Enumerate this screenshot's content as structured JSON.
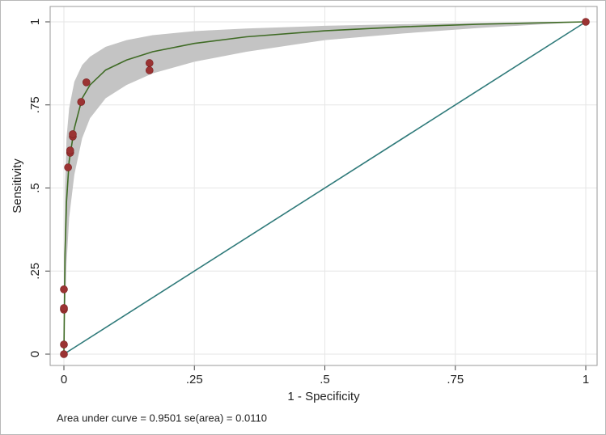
{
  "chart_data": {
    "type": "scatter",
    "xlabel": "1 - Specificity",
    "ylabel": "Sensitivity",
    "note": "Area under curve = 0.9501  se(area) = 0.0110",
    "xlim": [
      0,
      1
    ],
    "ylim": [
      0,
      1
    ],
    "xticks": [
      0,
      {
        "value": 0.25,
        "label": ".25"
      },
      {
        "value": 0.5,
        "label": ".5"
      },
      {
        "value": 0.75,
        "label": ".75"
      },
      1
    ],
    "yticks": [
      0,
      {
        "value": 0.25,
        "label": ".25"
      },
      {
        "value": 0.5,
        "label": ".5"
      },
      {
        "value": 0.75,
        "label": ".75"
      },
      1
    ],
    "grid": true,
    "series": [
      {
        "type": "area",
        "color": "#c4c4c4",
        "x": [
          0,
          0.002,
          0.005,
          0.01,
          0.02,
          0.035,
          0.05,
          0.08,
          0.12,
          0.17,
          0.25,
          0.35,
          0.5,
          0.65,
          0.8,
          1
        ],
        "upper": [
          0,
          0.5,
          0.65,
          0.74,
          0.82,
          0.87,
          0.895,
          0.925,
          0.945,
          0.96,
          0.972,
          0.98,
          0.988,
          0.993,
          0.997,
          1
        ],
        "lower": [
          0,
          0.12,
          0.27,
          0.41,
          0.54,
          0.65,
          0.71,
          0.77,
          0.81,
          0.845,
          0.88,
          0.91,
          0.945,
          0.965,
          0.982,
          1
        ]
      },
      {
        "type": "line",
        "color": "#2f7a7a",
        "x": [
          0,
          1
        ],
        "values": [
          0,
          1
        ]
      },
      {
        "type": "line",
        "color": "#3f6b25",
        "x": [
          0,
          0.002,
          0.005,
          0.01,
          0.02,
          0.035,
          0.05,
          0.08,
          0.12,
          0.17,
          0.25,
          0.35,
          0.5,
          0.65,
          0.8,
          1
        ],
        "values": [
          0,
          0.3,
          0.46,
          0.58,
          0.68,
          0.77,
          0.81,
          0.855,
          0.885,
          0.91,
          0.935,
          0.955,
          0.973,
          0.985,
          0.993,
          1
        ]
      },
      {
        "type": "scatter",
        "color": "#9b3333",
        "x": [
          0,
          0,
          0,
          0,
          0,
          0.008,
          0.012,
          0.012,
          0.017,
          0.017,
          0.033,
          0.043,
          0.164,
          0.164,
          1
        ],
        "values": [
          0,
          0.029,
          0.134,
          0.139,
          0.195,
          0.562,
          0.606,
          0.613,
          0.655,
          0.662,
          0.759,
          0.818,
          0.854,
          0.876,
          1
        ]
      }
    ]
  }
}
